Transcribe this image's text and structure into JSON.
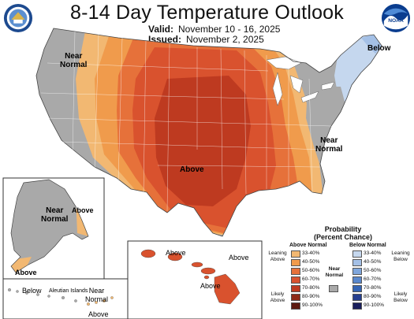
{
  "header": {
    "title": "8-14 Day Temperature Outlook",
    "valid_label": "Valid:",
    "valid_value": "November 10 - 16, 2025",
    "issued_label": "Issued:",
    "issued_value": "November 2, 2025"
  },
  "logos": {
    "left": "doc-seal-icon",
    "right": "noaa-logo-icon"
  },
  "map": {
    "labels": {
      "west": "Near\nNormal",
      "northeast": "Below",
      "southeast": "Near\nNormal",
      "central": "Above"
    },
    "alaska": {
      "near_normal": "Near\nNormal",
      "above_east": "Above",
      "above_south": "Above",
      "below": "Below",
      "aleutian": "Aleutian Islands",
      "near_normal_aleutian": "Near\nNormal",
      "above_aleutian": "Above"
    },
    "hawaii": {
      "above_1": "Above",
      "above_2": "Above",
      "above_3": "Above"
    }
  },
  "legend": {
    "title": "Probability\n(Percent Chance)",
    "above_heading": "Above Normal",
    "below_heading": "Below Normal",
    "near_heading": "Near\nNormal",
    "leaning_above": "Leaning\nAbove",
    "likely_above": "Likely\nAbove",
    "leaning_below": "Leaning\nBelow",
    "likely_below": "Likely\nBelow",
    "ranges": [
      "33-40%",
      "40-50%",
      "50-60%",
      "60-70%",
      "70-80%",
      "80-90%",
      "90-100%"
    ],
    "above_colors": [
      "#f2b872",
      "#f09b4c",
      "#e6713a",
      "#d9522e",
      "#be3a20",
      "#8e2a18",
      "#5c1a10"
    ],
    "below_colors": [
      "#c5d7ee",
      "#a4c0e6",
      "#7fa6dc",
      "#5a88cd",
      "#3565b5",
      "#263f8f",
      "#1a1f5c"
    ],
    "near_color": "#a9a9a9"
  }
}
